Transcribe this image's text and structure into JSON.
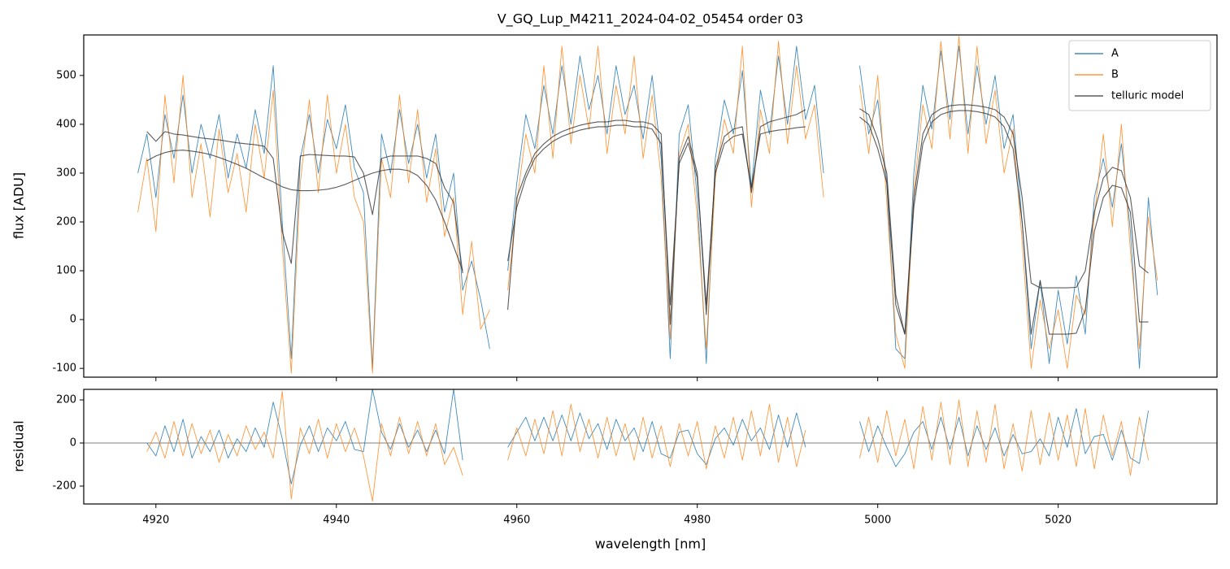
{
  "chart_data": [
    {
      "type": "line",
      "title": "V_GQ_Lup_M4211_2024-04-02_05454  order 03",
      "ylabel": "flux [ADU]",
      "legend": "upper right",
      "xlim": [
        4912,
        5037.6
      ],
      "ylim": [
        -118,
        583
      ],
      "yticks": [
        -100,
        0,
        100,
        200,
        300,
        400,
        500
      ],
      "x": [
        4918,
        4919,
        4920,
        4921,
        4922,
        4923,
        4924,
        4925,
        4926,
        4927,
        4928,
        4929,
        4930,
        4931,
        4932,
        4933,
        4934,
        4935,
        4936,
        4937,
        4938,
        4939,
        4940,
        4941,
        4942,
        4943,
        4944,
        4945,
        4946,
        4947,
        4948,
        4949,
        4950,
        4951,
        4952,
        4953,
        4954,
        4955,
        4956,
        4957,
        4958,
        4959,
        4960,
        4961,
        4962,
        4963,
        4964,
        4965,
        4966,
        4967,
        4968,
        4969,
        4970,
        4971,
        4972,
        4973,
        4974,
        4975,
        4976,
        4977,
        4978,
        4979,
        4980,
        4981,
        4982,
        4983,
        4984,
        4985,
        4986,
        4987,
        4988,
        4989,
        4990,
        4991,
        4992,
        4993,
        4994,
        4995,
        4996,
        4997,
        4998,
        4999,
        5000,
        5001,
        5002,
        5003,
        5004,
        5005,
        5006,
        5007,
        5008,
        5009,
        5010,
        5011,
        5012,
        5013,
        5014,
        5015,
        5016,
        5017,
        5018,
        5019,
        5020,
        5021,
        5022,
        5023,
        5024,
        5025,
        5026,
        5027,
        5028,
        5029,
        5030,
        5031
      ],
      "series": [
        {
          "name": "A",
          "color": "#1f77b4",
          "width": 0.9,
          "opacity": 0.85,
          "values": [
            300,
            380,
            250,
            420,
            330,
            460,
            300,
            400,
            330,
            420,
            290,
            380,
            310,
            430,
            340,
            520,
            200,
            -80,
            330,
            420,
            300,
            410,
            350,
            440,
            310,
            260,
            -100,
            380,
            300,
            430,
            320,
            400,
            290,
            380,
            220,
            300,
            60,
            120,
            40,
            -60,
            null,
            100,
            280,
            420,
            350,
            480,
            380,
            520,
            400,
            540,
            430,
            500,
            380,
            520,
            420,
            480,
            370,
            500,
            330,
            -80,
            380,
            440,
            250,
            -90,
            330,
            450,
            380,
            510,
            270,
            470,
            380,
            540,
            400,
            560,
            410,
            480,
            300,
            null,
            null,
            null,
            520,
            380,
            450,
            280,
            -60,
            -80,
            300,
            480,
            390,
            550,
            410,
            560,
            380,
            520,
            400,
            500,
            350,
            420,
            200,
            -60,
            80,
            -90,
            60,
            -50,
            90,
            -30,
            250,
            330,
            230,
            360,
            180,
            -100,
            250,
            50
          ]
        },
        {
          "name": "B",
          "color": "#ff7f0e",
          "width": 0.9,
          "opacity": 0.8,
          "values": [
            220,
            330,
            180,
            460,
            280,
            500,
            250,
            360,
            210,
            390,
            260,
            340,
            220,
            400,
            290,
            470,
            150,
            -110,
            280,
            450,
            260,
            460,
            300,
            400,
            250,
            200,
            -110,
            330,
            250,
            460,
            280,
            430,
            240,
            350,
            170,
            250,
            10,
            160,
            -20,
            20,
            null,
            60,
            240,
            380,
            300,
            520,
            330,
            560,
            360,
            500,
            390,
            560,
            340,
            480,
            380,
            540,
            330,
            460,
            290,
            -40,
            340,
            400,
            210,
            -60,
            290,
            410,
            340,
            560,
            230,
            430,
            340,
            570,
            360,
            520,
            370,
            440,
            250,
            null,
            null,
            null,
            480,
            340,
            500,
            240,
            -30,
            -100,
            260,
            440,
            350,
            570,
            370,
            580,
            340,
            560,
            360,
            470,
            300,
            390,
            160,
            -100,
            40,
            -60,
            20,
            -100,
            50,
            10,
            210,
            380,
            190,
            400,
            140,
            -60,
            210,
            80
          ]
        },
        {
          "name": "telluric model",
          "color": "#333333",
          "width": 1.1,
          "opacity": 0.8,
          "values": [
            null,
            385,
            365,
            385,
            380,
            378,
            375,
            372,
            370,
            368,
            365,
            362,
            360,
            358,
            355,
            330,
            180,
            115,
            335,
            338,
            337,
            336,
            335,
            335,
            333,
            300,
            215,
            330,
            335,
            335,
            335,
            335,
            330,
            320,
            270,
            240,
            95,
            null,
            null,
            null,
            null,
            20,
            250,
            300,
            340,
            360,
            375,
            385,
            392,
            398,
            402,
            405,
            405,
            408,
            408,
            405,
            405,
            400,
            380,
            -10,
            330,
            375,
            300,
            10,
            310,
            375,
            390,
            395,
            260,
            395,
            405,
            410,
            415,
            420,
            430,
            null,
            null,
            null,
            null,
            null,
            432,
            420,
            370,
            300,
            50,
            -30,
            250,
            380,
            420,
            432,
            438,
            440,
            440,
            438,
            435,
            430,
            415,
            380,
            250,
            75,
            65,
            65,
            65,
            65,
            66,
            100,
            220,
            290,
            312,
            305,
            250,
            110,
            95,
            null
          ]
        },
        {
          "color": "#333333",
          "width": 1.1,
          "opacity": 0.8,
          "values": [
            null,
            325,
            335,
            342,
            346,
            347,
            345,
            342,
            338,
            332,
            325,
            318,
            310,
            300,
            290,
            282,
            272,
            266,
            264,
            264,
            265,
            267,
            271,
            277,
            285,
            293,
            300,
            305,
            308,
            308,
            305,
            295,
            275,
            245,
            200,
            150,
            100,
            null,
            null,
            null,
            null,
            120,
            230,
            290,
            330,
            350,
            365,
            375,
            382,
            388,
            392,
            395,
            395,
            398,
            398,
            395,
            395,
            390,
            360,
            30,
            320,
            362,
            290,
            30,
            300,
            360,
            375,
            380,
            270,
            380,
            385,
            388,
            390,
            393,
            395,
            null,
            null,
            null,
            null,
            null,
            415,
            400,
            350,
            280,
            30,
            -30,
            230,
            360,
            405,
            420,
            426,
            428,
            428,
            426,
            422,
            415,
            395,
            350,
            200,
            -30,
            80,
            -30,
            -30,
            -30,
            -28,
            20,
            180,
            250,
            275,
            270,
            220,
            -5,
            -5,
            null
          ]
        }
      ]
    },
    {
      "type": "line",
      "xlabel": "wavelength [nm]",
      "ylabel": "residual",
      "xlim": [
        4912,
        5037.6
      ],
      "ylim": [
        -283,
        249
      ],
      "yticks": [
        -200,
        0,
        200
      ],
      "xticks": [
        4920,
        4940,
        4960,
        4980,
        5000,
        5020
      ],
      "hline": 0,
      "x": [
        4918,
        4919,
        4920,
        4921,
        4922,
        4923,
        4924,
        4925,
        4926,
        4927,
        4928,
        4929,
        4930,
        4931,
        4932,
        4933,
        4934,
        4935,
        4936,
        4937,
        4938,
        4939,
        4940,
        4941,
        4942,
        4943,
        4944,
        4945,
        4946,
        4947,
        4948,
        4949,
        4950,
        4951,
        4952,
        4953,
        4954,
        4955,
        4956,
        4957,
        4958,
        4959,
        4960,
        4961,
        4962,
        4963,
        4964,
        4965,
        4966,
        4967,
        4968,
        4969,
        4970,
        4971,
        4972,
        4973,
        4974,
        4975,
        4976,
        4977,
        4978,
        4979,
        4980,
        4981,
        4982,
        4983,
        4984,
        4985,
        4986,
        4987,
        4988,
        4989,
        4990,
        4991,
        4992,
        4993,
        4994,
        4995,
        4996,
        4997,
        4998,
        4999,
        5000,
        5001,
        5002,
        5003,
        5004,
        5005,
        5006,
        5007,
        5008,
        5009,
        5010,
        5011,
        5012,
        5013,
        5014,
        5015,
        5016,
        5017,
        5018,
        5019,
        5020,
        5021,
        5022,
        5023,
        5024,
        5025,
        5026,
        5027,
        5028,
        5029,
        5030,
        5031
      ],
      "series": [
        {
          "color": "#1f77b4",
          "width": 0.9,
          "opacity": 0.85,
          "values": [
            null,
            0,
            -60,
            80,
            -40,
            110,
            -70,
            30,
            -40,
            60,
            -70,
            20,
            -40,
            70,
            -20,
            190,
            20,
            -190,
            -10,
            80,
            -40,
            70,
            10,
            100,
            -30,
            -40,
            250,
            50,
            -30,
            90,
            -20,
            60,
            -40,
            60,
            -50,
            250,
            -80,
            null,
            null,
            null,
            null,
            -20,
            50,
            120,
            10,
            120,
            10,
            130,
            10,
            140,
            20,
            90,
            -30,
            110,
            10,
            70,
            -40,
            100,
            -50,
            -70,
            50,
            60,
            -50,
            -100,
            20,
            70,
            -10,
            110,
            10,
            70,
            -30,
            130,
            -20,
            140,
            -20,
            null,
            null,
            null,
            null,
            null,
            100,
            -40,
            80,
            -20,
            -110,
            -50,
            50,
            100,
            -30,
            120,
            -30,
            120,
            -60,
            80,
            -30,
            70,
            -60,
            40,
            -50,
            -40,
            20,
            -60,
            120,
            -20,
            160,
            -50,
            30,
            40,
            -80,
            60,
            -70,
            -95,
            150,
            null
          ]
        },
        {
          "color": "#ff7f0e",
          "width": 0.9,
          "opacity": 0.8,
          "values": [
            null,
            -40,
            50,
            -70,
            100,
            -60,
            90,
            -50,
            60,
            -90,
            40,
            -60,
            80,
            -30,
            50,
            -70,
            240,
            -260,
            70,
            -50,
            110,
            -70,
            90,
            -40,
            70,
            -60,
            -270,
            90,
            -60,
            120,
            -50,
            100,
            -60,
            90,
            -100,
            -20,
            -150,
            null,
            null,
            null,
            null,
            -80,
            70,
            -60,
            110,
            -50,
            150,
            -60,
            180,
            -40,
            110,
            -70,
            120,
            -60,
            90,
            -80,
            120,
            -70,
            80,
            -110,
            90,
            -60,
            100,
            -120,
            80,
            -70,
            120,
            -80,
            150,
            -60,
            180,
            -90,
            120,
            -110,
            60,
            null,
            null,
            null,
            null,
            null,
            -70,
            120,
            -90,
            150,
            -60,
            110,
            -120,
            170,
            -80,
            190,
            -100,
            200,
            -110,
            150,
            -90,
            180,
            -120,
            90,
            -130,
            150,
            -100,
            140,
            -80,
            130,
            -110,
            160,
            -120,
            130,
            -60,
            100,
            -150,
            120,
            -80,
            null
          ]
        }
      ]
    }
  ]
}
